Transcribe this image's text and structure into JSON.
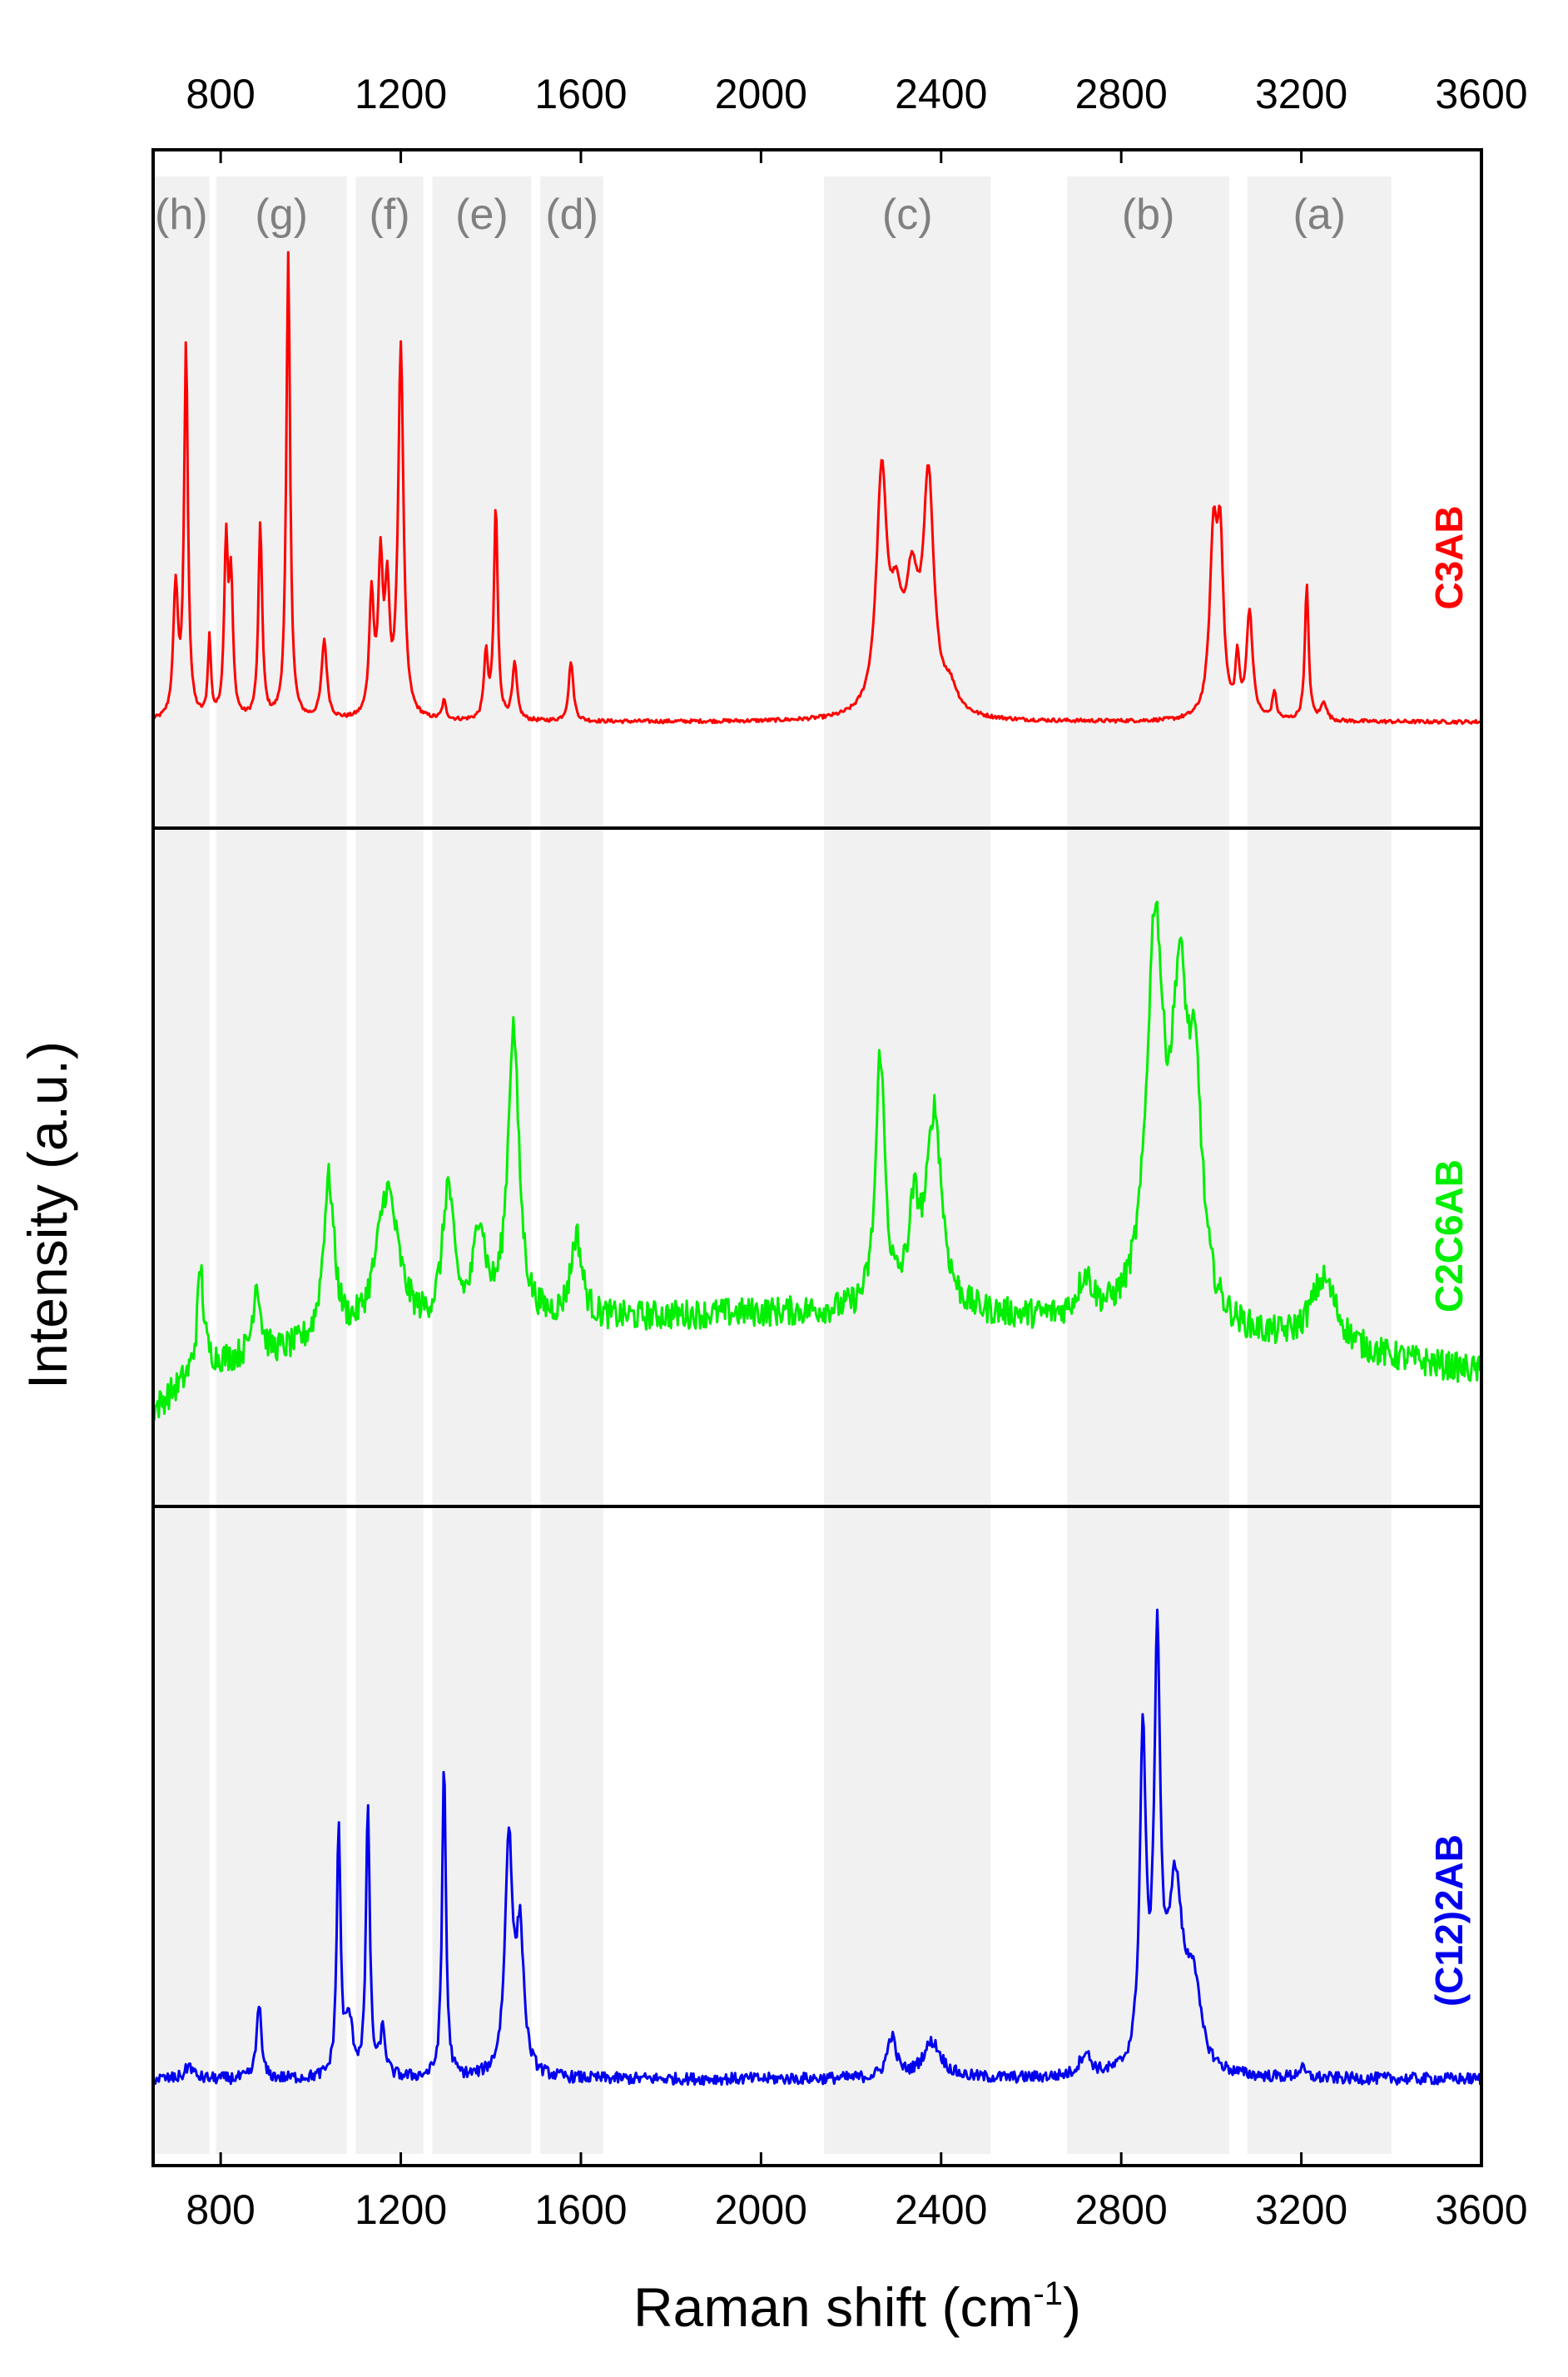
{
  "chart_data": {
    "type": "line",
    "xlabel": "Raman shift (cm",
    "xlabel_sup": "-1",
    "xlabel_end": ")",
    "ylabel": "Intensity (a.u.)",
    "xlim": [
      650,
      3600
    ],
    "x_ticks": [
      "800",
      "1200",
      "1600",
      "2000",
      "2400",
      "2800",
      "3200",
      "3600"
    ],
    "x_tick_values": [
      800,
      1200,
      1600,
      2000,
      2400,
      2800,
      3200,
      3600
    ],
    "bands": [
      {
        "label": "(a)",
        "range": [
          3080,
          3400
        ]
      },
      {
        "label": "(b)",
        "range": [
          2680,
          3040
        ]
      },
      {
        "label": "(c)",
        "range": [
          2140,
          2510
        ]
      },
      {
        "label": "(d)",
        "range": [
          1510,
          1650
        ]
      },
      {
        "label": "(e)",
        "range": [
          1270,
          1490
        ]
      },
      {
        "label": "(f)",
        "range": [
          1100,
          1250
        ]
      },
      {
        "label": "(g)",
        "range": [
          790,
          1080
        ]
      },
      {
        "label": "(h)",
        "range": [
          650,
          775
        ]
      }
    ],
    "series": [
      {
        "name": "C3AB",
        "color": "#ff0000",
        "baseline": 0.04,
        "noise": 0.004,
        "peaks": [
          [
            700,
            0.28,
            6
          ],
          [
            723,
            0.8,
            5
          ],
          [
            775,
            0.17,
            4
          ],
          [
            812,
            0.37,
            5
          ],
          [
            823,
            0.28,
            5
          ],
          [
            888,
            0.42,
            5
          ],
          [
            950,
            1.0,
            5
          ],
          [
            1030,
            0.17,
            7
          ],
          [
            1135,
            0.26,
            6
          ],
          [
            1155,
            0.32,
            6
          ],
          [
            1170,
            0.25,
            6
          ],
          [
            1200,
            0.8,
            7
          ],
          [
            1296,
            0.04,
            5
          ],
          [
            1389,
            0.14,
            5
          ],
          [
            1411,
            0.46,
            5
          ],
          [
            1453,
            0.12,
            6
          ],
          [
            1578,
            0.13,
            6
          ],
          [
            2268,
            0.5,
            14
          ],
          [
            2300,
            0.18,
            16
          ],
          [
            2335,
            0.25,
            18
          ],
          [
            2372,
            0.48,
            14
          ],
          [
            2420,
            0.05,
            20
          ],
          [
            3005,
            0.38,
            10
          ],
          [
            3020,
            0.34,
            8
          ],
          [
            3058,
            0.12,
            5
          ],
          [
            3085,
            0.23,
            8
          ],
          [
            3140,
            0.06,
            5
          ],
          [
            3212,
            0.29,
            5
          ],
          [
            3250,
            0.04,
            7
          ]
        ]
      },
      {
        "name": "C2C6AB",
        "color": "#00ee00",
        "baseline": 0.22,
        "noise": 0.03,
        "peaks": [
          [
            755,
            0.2,
            8
          ],
          [
            880,
            0.15,
            10
          ],
          [
            1040,
            0.33,
            15
          ],
          [
            1170,
            0.3,
            30
          ],
          [
            1305,
            0.28,
            15
          ],
          [
            1375,
            0.2,
            15
          ],
          [
            1450,
            0.6,
            15
          ],
          [
            1590,
            0.17,
            15
          ],
          [
            2265,
            0.52,
            12
          ],
          [
            2340,
            0.18,
            15
          ],
          [
            2385,
            0.4,
            20
          ],
          [
            2720,
            0.08,
            20
          ],
          [
            2875,
            0.78,
            22
          ],
          [
            2930,
            0.6,
            22
          ],
          [
            2965,
            0.4,
            18
          ],
          [
            3250,
            0.14,
            35
          ]
        ]
      },
      {
        "name": "(C12)2AB",
        "color": "#0000ee",
        "baseline": 0.04,
        "noise": 0.013,
        "peaks": [
          [
            730,
            0.03,
            10
          ],
          [
            885,
            0.17,
            6
          ],
          [
            1062,
            0.55,
            5
          ],
          [
            1085,
            0.12,
            10
          ],
          [
            1127,
            0.6,
            5
          ],
          [
            1160,
            0.1,
            7
          ],
          [
            1296,
            0.7,
            5
          ],
          [
            1440,
            0.52,
            10
          ],
          [
            1465,
            0.3,
            10
          ],
          [
            2290,
            0.09,
            12
          ],
          [
            2380,
            0.08,
            25
          ],
          [
            2720,
            0.05,
            15
          ],
          [
            2848,
            0.72,
            8
          ],
          [
            2880,
            0.9,
            8
          ],
          [
            2920,
            0.4,
            20
          ],
          [
            2960,
            0.18,
            18
          ],
          [
            3200,
            0.02,
            10
          ]
        ]
      }
    ]
  }
}
